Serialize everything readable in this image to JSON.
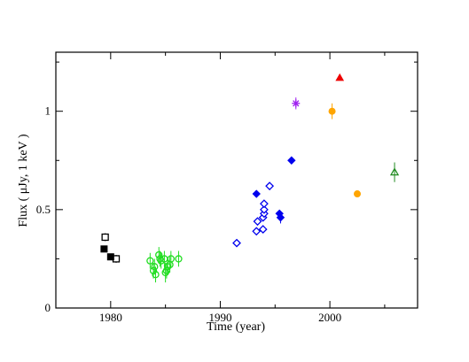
{
  "chart_data": {
    "type": "scatter",
    "title": "",
    "xlabel": "Time (year)",
    "ylabel": "Flux ( μJy, 1 keV )",
    "xlim": [
      1975,
      2008
    ],
    "ylim": [
      0,
      1.3
    ],
    "xticks": [
      1980,
      1990,
      2000
    ],
    "yticks": [
      0,
      0.5,
      1
    ],
    "xtick_labels": [
      "1980",
      "1990",
      "2000"
    ],
    "ytick_labels": [
      "0",
      "0.5",
      "1"
    ],
    "grid": false,
    "legend": "none",
    "series": [
      {
        "marker": "square-open",
        "color": "#000000",
        "points": [
          {
            "x": 1979.5,
            "y": 0.36,
            "err": 0.02
          },
          {
            "x": 1980.5,
            "y": 0.25,
            "err": 0.02
          }
        ]
      },
      {
        "marker": "square-filled",
        "color": "#000000",
        "points": [
          {
            "x": 1979.4,
            "y": 0.3,
            "err": 0.01
          },
          {
            "x": 1980.0,
            "y": 0.26,
            "err": 0.01
          }
        ]
      },
      {
        "marker": "circle-open",
        "color": "#22dd22",
        "points": [
          {
            "x": 1983.6,
            "y": 0.24,
            "err": 0.04
          },
          {
            "x": 1983.9,
            "y": 0.19,
            "err": 0.04
          },
          {
            "x": 1984.0,
            "y": 0.21,
            "err": 0.04
          },
          {
            "x": 1984.1,
            "y": 0.17,
            "err": 0.04
          },
          {
            "x": 1984.4,
            "y": 0.27,
            "err": 0.04
          },
          {
            "x": 1984.5,
            "y": 0.25,
            "err": 0.04
          },
          {
            "x": 1984.6,
            "y": 0.24,
            "err": 0.04
          },
          {
            "x": 1984.9,
            "y": 0.25,
            "err": 0.04
          },
          {
            "x": 1985.0,
            "y": 0.18,
            "err": 0.05
          },
          {
            "x": 1985.1,
            "y": 0.19,
            "err": 0.04
          },
          {
            "x": 1985.2,
            "y": 0.21,
            "err": 0.04
          },
          {
            "x": 1985.4,
            "y": 0.22,
            "err": 0.04
          },
          {
            "x": 1985.5,
            "y": 0.25,
            "err": 0.04
          },
          {
            "x": 1986.2,
            "y": 0.25,
            "err": 0.04
          }
        ]
      },
      {
        "marker": "diamond-open",
        "color": "#0000ee",
        "points": [
          {
            "x": 1991.5,
            "y": 0.33,
            "err": 0.01
          },
          {
            "x": 1993.3,
            "y": 0.39,
            "err": 0.01
          },
          {
            "x": 1993.4,
            "y": 0.44,
            "err": 0.01
          },
          {
            "x": 1993.9,
            "y": 0.4,
            "err": 0.01
          },
          {
            "x": 1993.9,
            "y": 0.46,
            "err": 0.01
          },
          {
            "x": 1994.0,
            "y": 0.48,
            "err": 0.01
          },
          {
            "x": 1994.0,
            "y": 0.5,
            "err": 0.01
          },
          {
            "x": 1994.0,
            "y": 0.53,
            "err": 0.01
          },
          {
            "x": 1994.5,
            "y": 0.62,
            "err": 0.01
          }
        ]
      },
      {
        "marker": "diamond-filled",
        "color": "#0000ee",
        "points": [
          {
            "x": 1993.3,
            "y": 0.58,
            "err": 0.01
          },
          {
            "x": 1995.4,
            "y": 0.48,
            "err": 0.01
          },
          {
            "x": 1995.5,
            "y": 0.46,
            "err": 0.03
          },
          {
            "x": 1996.5,
            "y": 0.75,
            "err": 0.01
          }
        ]
      },
      {
        "marker": "asterisk",
        "color": "#a020f0",
        "points": [
          {
            "x": 1996.9,
            "y": 1.04,
            "err": 0.03
          }
        ]
      },
      {
        "marker": "circle-filled",
        "color": "#ffa500",
        "points": [
          {
            "x": 2000.2,
            "y": 1.0,
            "err": 0.04
          },
          {
            "x": 2002.5,
            "y": 0.58,
            "err": 0.01
          }
        ]
      },
      {
        "marker": "triangle-filled",
        "color": "#ee0000",
        "points": [
          {
            "x": 2000.9,
            "y": 1.17,
            "err": 0.01
          }
        ]
      },
      {
        "marker": "triangle-open",
        "color": "#228b22",
        "points": [
          {
            "x": 2005.9,
            "y": 0.69,
            "err": 0.05
          }
        ]
      }
    ]
  }
}
